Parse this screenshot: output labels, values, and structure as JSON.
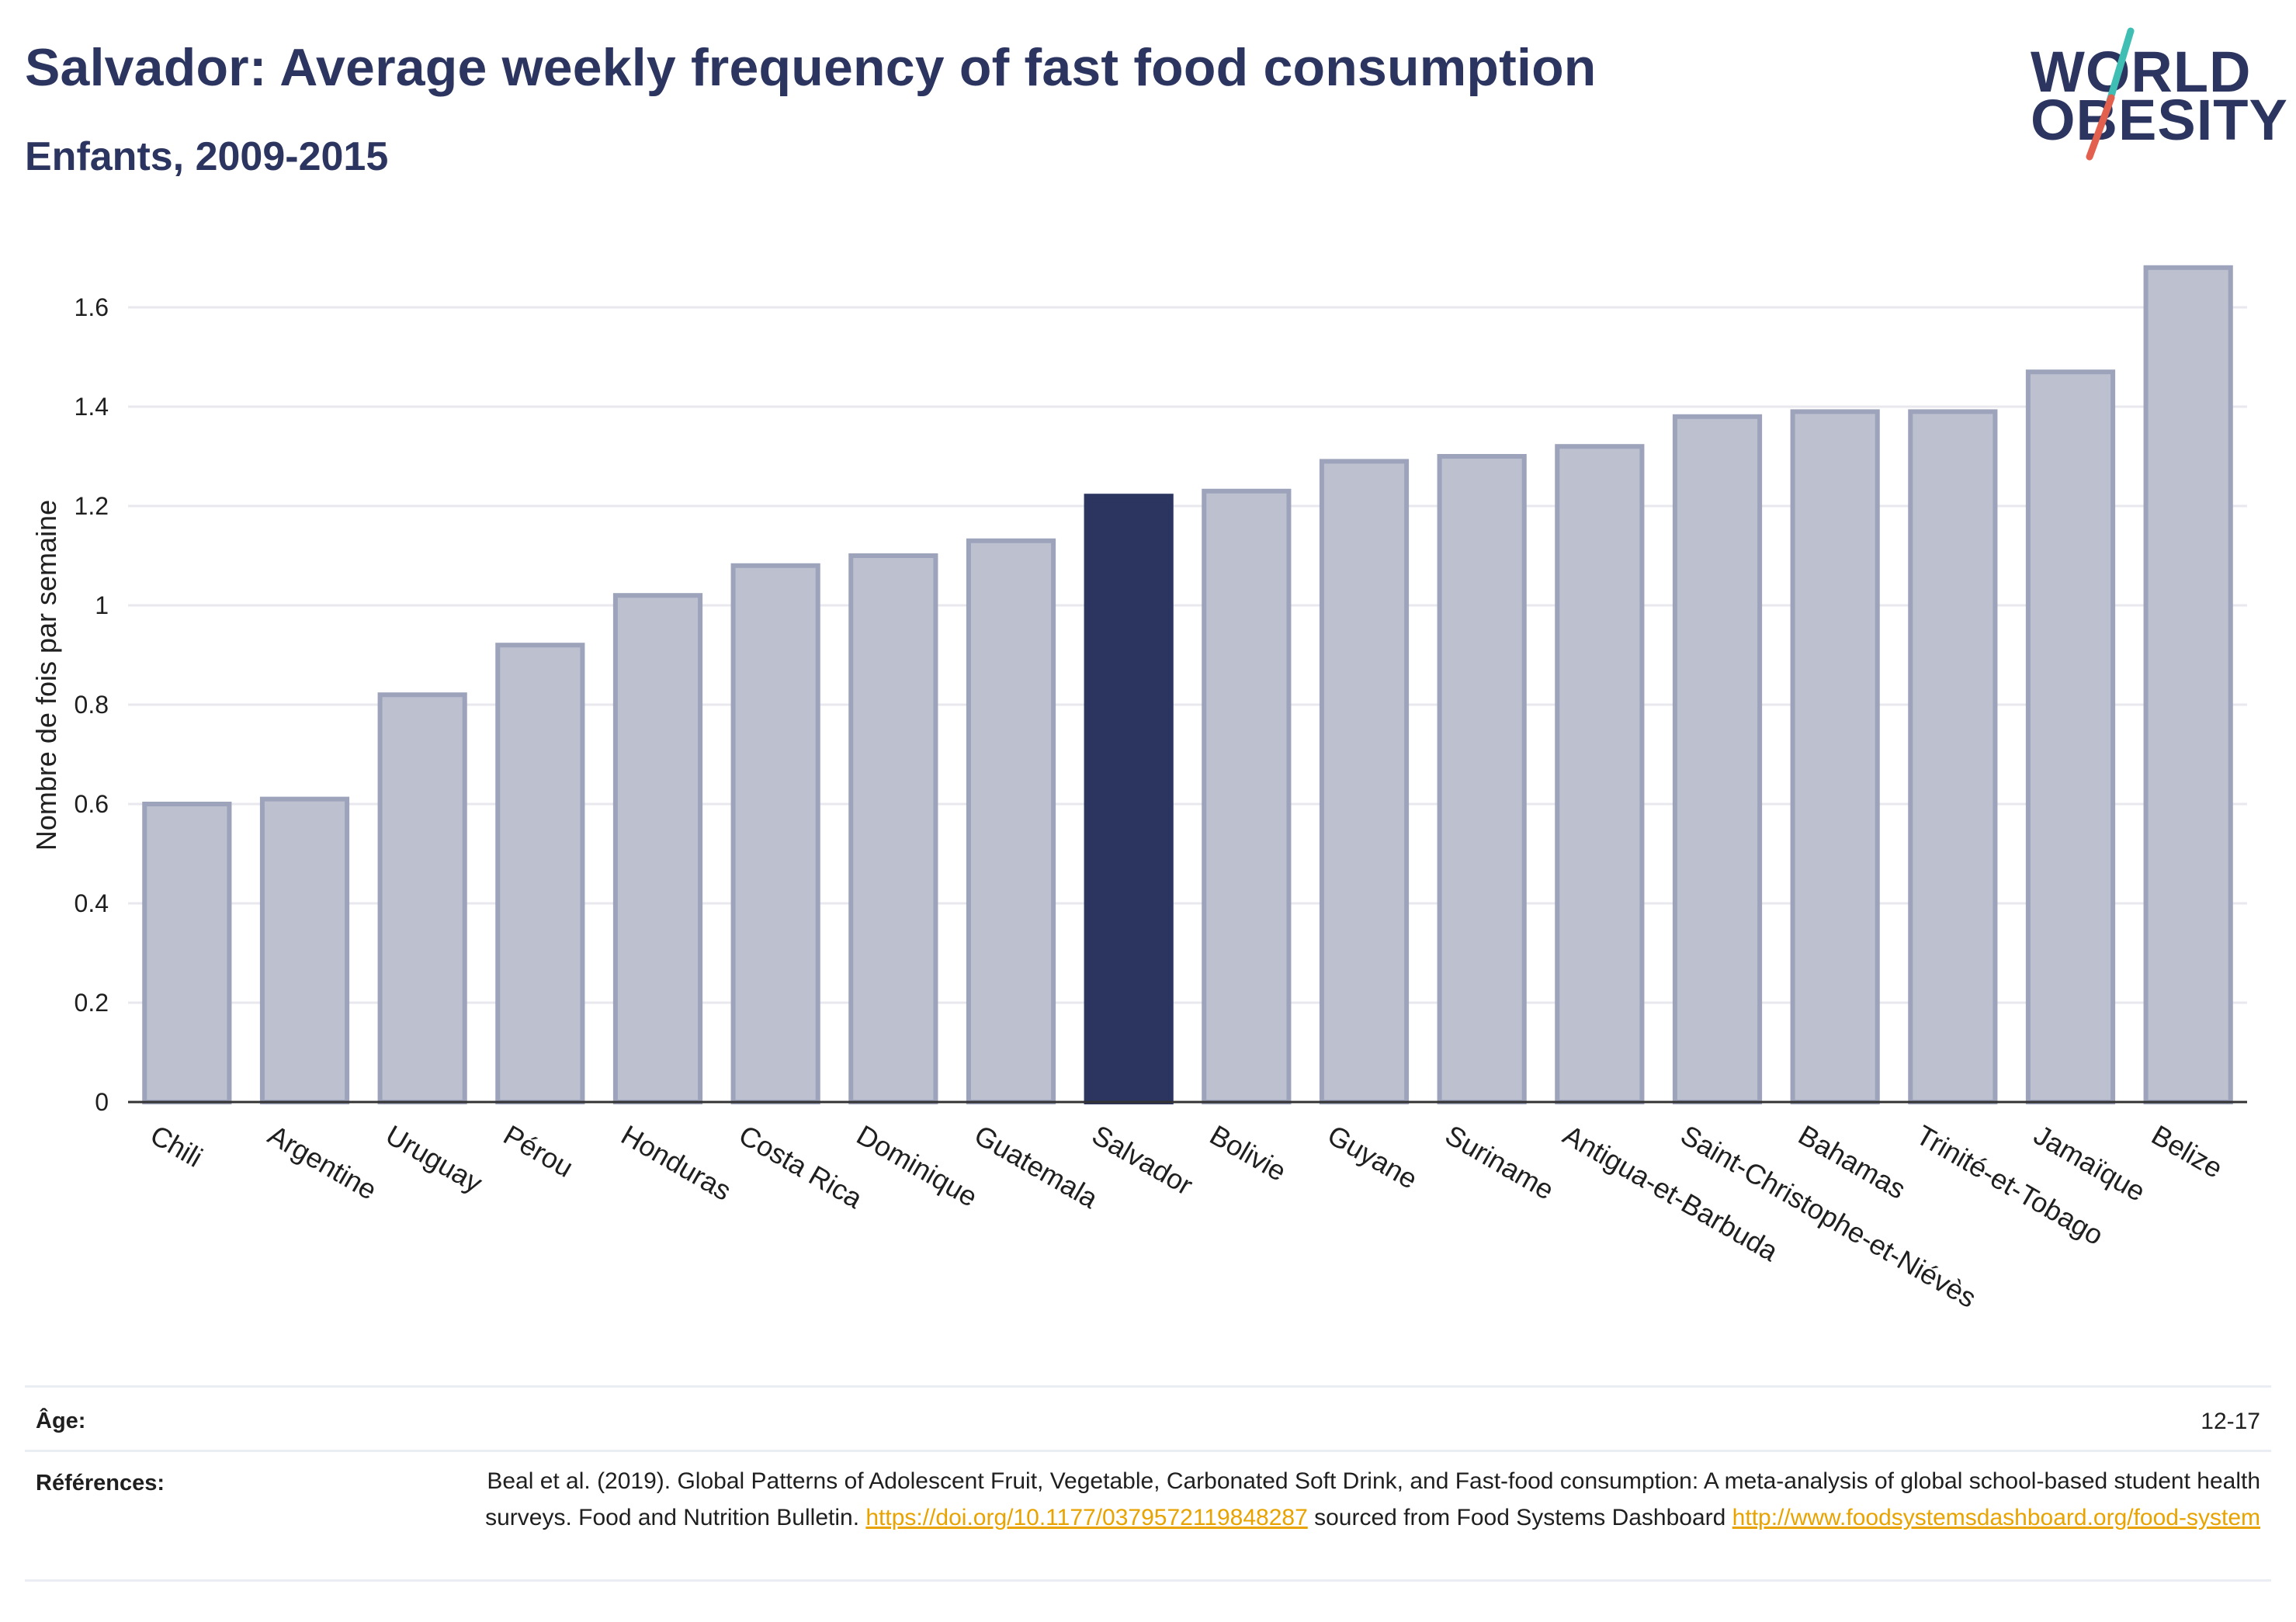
{
  "header": {
    "title": "Salvador: Average weekly frequency of fast food consumption",
    "subtitle": "Enfants, 2009-2015"
  },
  "logo": {
    "line1": "WORLD",
    "line2": "OBESITY",
    "accent_teal": "#3fbfb4",
    "accent_red": "#e2604d"
  },
  "colors": {
    "highlight_bar": "#2b3560",
    "other_bar_fill": "#bcc0cf",
    "other_bar_stroke": "#9da3bb",
    "grid": "#e8e8ee",
    "title": "#2b3560",
    "link": "#e8a300"
  },
  "chart_data": {
    "type": "bar",
    "title": "Salvador: Average weekly frequency of fast food consumption",
    "subtitle": "Enfants, 2009-2015",
    "ylabel": "Nombre de fois par semaine",
    "xlabel": "",
    "ylim": [
      0,
      1.75
    ],
    "yticks": [
      0,
      0.2,
      0.4,
      0.6,
      0.8,
      1,
      1.2,
      1.4,
      1.6
    ],
    "ytick_labels": [
      "0",
      "0.2",
      "0.4",
      "0.6",
      "0.8",
      "1",
      "1.2",
      "1.4",
      "1.6"
    ],
    "grid": true,
    "highlight": "Salvador",
    "categories": [
      "Chili",
      "Argentine",
      "Uruguay",
      "Pérou",
      "Honduras",
      "Costa Rica",
      "Dominique",
      "Guatemala",
      "Salvador",
      "Bolivie",
      "Guyane",
      "Suriname",
      "Antigua-et-Barbuda",
      "Saint-Christophe-et-Niévès",
      "Bahamas",
      "Trinité-et-Tobago",
      "Jamaïque",
      "Belize"
    ],
    "values": [
      0.6,
      0.61,
      0.82,
      0.92,
      1.02,
      1.08,
      1.1,
      1.13,
      1.22,
      1.23,
      1.29,
      1.3,
      1.32,
      1.38,
      1.39,
      1.39,
      1.47,
      1.68
    ]
  },
  "footer": {
    "age_label": "Âge:",
    "age_value": "12-17",
    "refs_label": "Références:",
    "refs_text_1": "Beal et al. (2019). Global Patterns of Adolescent Fruit, Vegetable, Carbonated Soft Drink, and Fast-food consumption: A meta-analysis of global school-based student health surveys. Food and Nutrition Bulletin. ",
    "refs_link_1": "https://doi.org/10.1177/0379572119848287",
    "refs_text_2": " sourced from Food Systems Dashboard ",
    "refs_link_2": "http://www.foodsystemsdashboard.org/food-system"
  }
}
